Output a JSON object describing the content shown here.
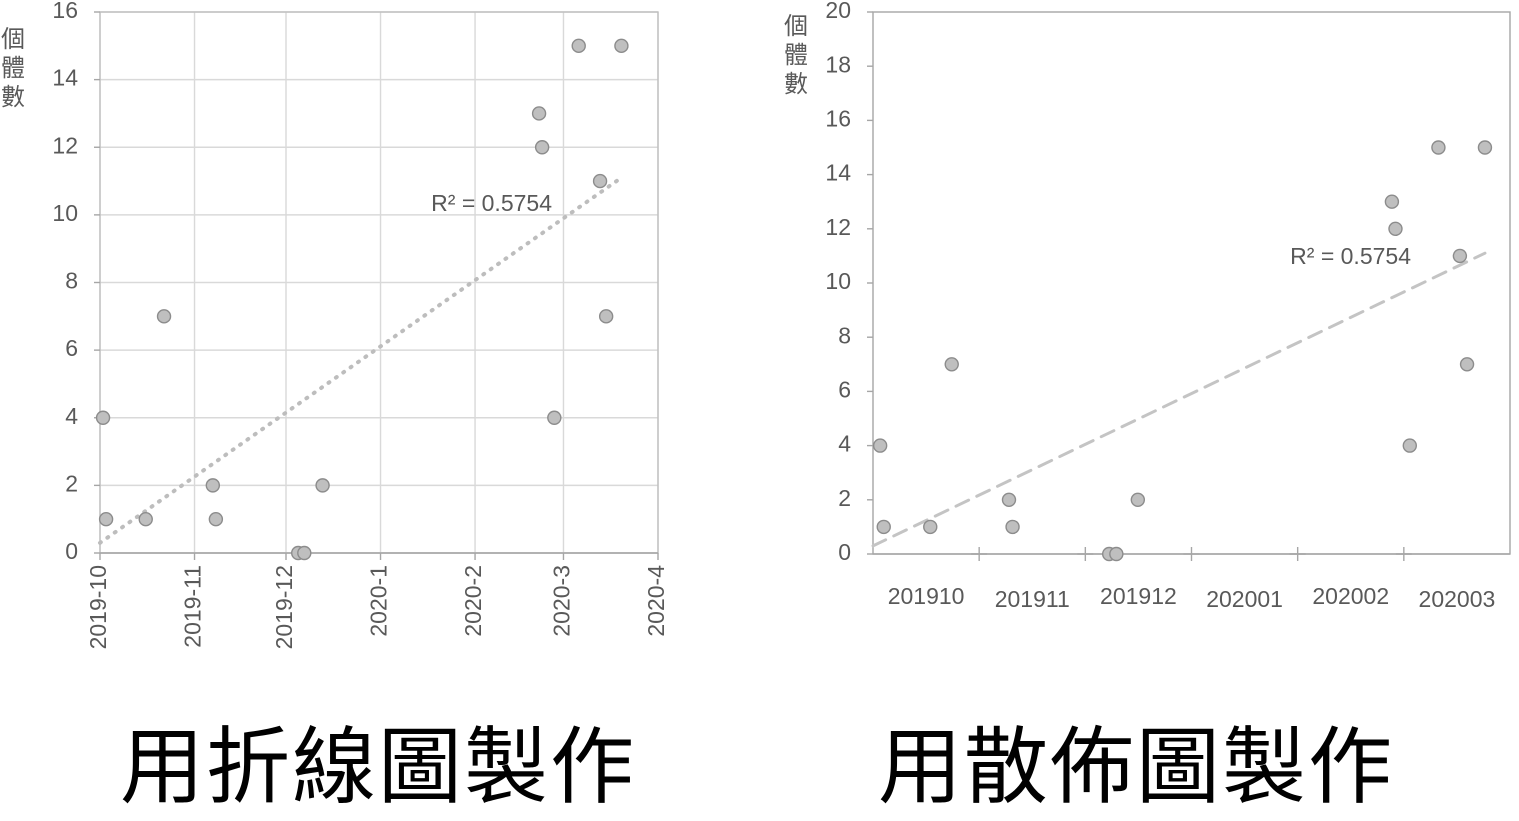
{
  "charts": [
    {
      "type": "scatter",
      "ylabel": "個體數",
      "ylim": [
        0,
        16
      ],
      "yticks": [
        0,
        2,
        4,
        6,
        8,
        10,
        12,
        14,
        16
      ],
      "xlim": [
        "2019-10-01",
        "2020-04-01"
      ],
      "xticks": [
        "2019-10",
        "2019-11",
        "2019-12",
        "2020-1",
        "2020-2",
        "2020-3",
        "2020-4"
      ],
      "grid": true,
      "points": [
        {
          "x": "2019-10-02",
          "y": 4
        },
        {
          "x": "2019-10-03",
          "y": 1
        },
        {
          "x": "2019-10-16",
          "y": 1
        },
        {
          "x": "2019-10-22",
          "y": 7
        },
        {
          "x": "2019-11-07",
          "y": 2
        },
        {
          "x": "2019-11-08",
          "y": 1
        },
        {
          "x": "2019-12-05",
          "y": 0
        },
        {
          "x": "2019-12-07",
          "y": 0
        },
        {
          "x": "2019-12-13",
          "y": 2
        },
        {
          "x": "2020-02-22",
          "y": 13
        },
        {
          "x": "2020-02-23",
          "y": 12
        },
        {
          "x": "2020-02-27",
          "y": 4
        },
        {
          "x": "2020-03-06",
          "y": 15
        },
        {
          "x": "2020-03-13",
          "y": 11
        },
        {
          "x": "2020-03-15",
          "y": 7
        },
        {
          "x": "2020-03-20",
          "y": 15
        }
      ],
      "trendline": {
        "style": "dotted",
        "from": {
          "x": "2019-10-01",
          "y": 0.3
        },
        "to": {
          "x": "2020-03-20",
          "y": 11.1
        }
      },
      "r2_label": "R² = 0.5754",
      "caption": "用折線圖製作"
    },
    {
      "type": "scatter",
      "ylabel": "個體數",
      "ylim": [
        0,
        20
      ],
      "yticks": [
        0,
        2,
        4,
        6,
        8,
        10,
        12,
        14,
        16,
        18,
        20
      ],
      "xlim": [
        "2019-09-30",
        "2020-03-26"
      ],
      "xticks": [
        "201910",
        "201911",
        "201912",
        "202001",
        "202002",
        "202003"
      ],
      "grid": false,
      "points": [
        {
          "x": "2019-10-02",
          "y": 4
        },
        {
          "x": "2019-10-03",
          "y": 1
        },
        {
          "x": "2019-10-16",
          "y": 1
        },
        {
          "x": "2019-10-22",
          "y": 7
        },
        {
          "x": "2019-11-07",
          "y": 2
        },
        {
          "x": "2019-11-08",
          "y": 1
        },
        {
          "x": "2019-12-05",
          "y": 0
        },
        {
          "x": "2019-12-07",
          "y": 0
        },
        {
          "x": "2019-12-13",
          "y": 2
        },
        {
          "x": "2020-02-22",
          "y": 13
        },
        {
          "x": "2020-02-23",
          "y": 12
        },
        {
          "x": "2020-02-27",
          "y": 4
        },
        {
          "x": "2020-03-06",
          "y": 15
        },
        {
          "x": "2020-03-12",
          "y": 11
        },
        {
          "x": "2020-03-14",
          "y": 7
        },
        {
          "x": "2020-03-19",
          "y": 15
        }
      ],
      "trendline": {
        "style": "dashed",
        "from": {
          "x": "2019-09-30",
          "y": 0.3
        },
        "to": {
          "x": "2020-03-19",
          "y": 11.1
        }
      },
      "r2_label": "R² = 0.5754",
      "caption": "用散佈圖製作"
    }
  ]
}
